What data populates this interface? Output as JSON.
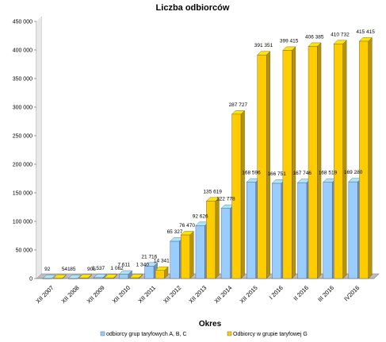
{
  "chart_data": {
    "type": "bar",
    "title": "Liczba odbiorców",
    "xlabel": "Okres",
    "ylabel": "",
    "ylim": [
      0,
      450000
    ],
    "yticks": [
      0,
      50000,
      100000,
      150000,
      200000,
      250000,
      300000,
      350000,
      400000,
      450000
    ],
    "ytick_labels": [
      "0",
      "50 000",
      "100 000",
      "150 000",
      "200 000",
      "250 000",
      "300 000",
      "350 000",
      "400 000",
      "450 000"
    ],
    "grid": false,
    "legend_position": "bottom",
    "categories": [
      "XII 2007",
      "XII 2008",
      "XII 2009",
      "XII 2010",
      "XII 2011",
      "XII 2012",
      "XII 2013",
      "XII 2014",
      "XII 2015",
      "I 2016",
      "II 2016",
      "III 2016",
      "IV2016"
    ],
    "series": [
      {
        "name": "odbiorcy grup taryfowych A, B, C",
        "color": "#99ccff",
        "values": [
          92,
          85,
          1537,
          7611,
          21716,
          65327,
          92626,
          122778,
          168596,
          166751,
          167746,
          168519,
          169280
        ],
        "labels": [
          "92",
          "85",
          "1 537",
          "7 611",
          "21 716",
          "65 327",
          "92 626",
          "122 778",
          "168 596",
          "166 751",
          "167 746",
          "168 519",
          "169 280"
        ]
      },
      {
        "name": "Odbiorcy w grupie taryfowej G",
        "color": "#ffcc00",
        "values": [
          541,
          905,
          1062,
          1340,
          14341,
          76470,
          135619,
          287727,
          391351,
          399415,
          406385,
          410732,
          415415
        ],
        "labels": [
          "541",
          "905",
          "1 062",
          "1 340",
          "14 341",
          "76 470",
          "135 619",
          "287 727",
          "391 351",
          "399 415",
          "406 385",
          "410 732",
          "415 415"
        ]
      }
    ]
  }
}
